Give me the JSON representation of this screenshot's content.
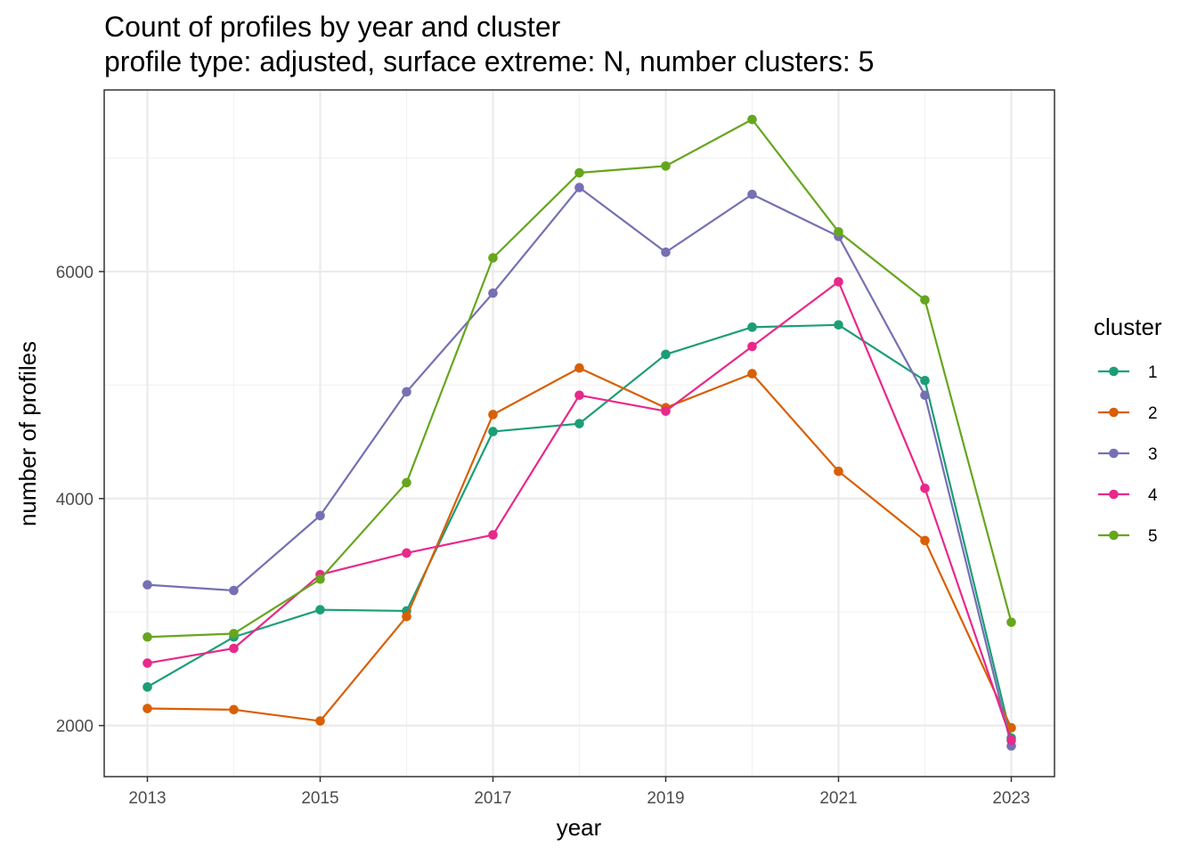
{
  "chart_data": {
    "type": "line",
    "title": "Count of profiles by year and cluster",
    "subtitle": "profile type: adjusted, surface extreme: N, number clusters: 5",
    "xlabel": "year",
    "ylabel": "number of profiles",
    "x": [
      2013,
      2014,
      2015,
      2016,
      2017,
      2018,
      2019,
      2020,
      2021,
      2022,
      2023
    ],
    "xlim": [
      2012.5,
      2023.5
    ],
    "ylim": [
      1550,
      7600
    ],
    "x_ticks": [
      2013,
      2015,
      2017,
      2019,
      2021,
      2023
    ],
    "y_ticks": [
      2000,
      4000,
      6000
    ],
    "grid": true,
    "legend": {
      "title": "cluster",
      "position": "right"
    },
    "series": [
      {
        "name": "1",
        "color": "#1B9E77",
        "values": [
          2340,
          2780,
          3020,
          3010,
          4590,
          4660,
          5270,
          5510,
          5530,
          5040,
          1890
        ]
      },
      {
        "name": "2",
        "color": "#D95F02",
        "values": [
          2150,
          2140,
          2040,
          2960,
          4740,
          5150,
          4800,
          5100,
          4240,
          3630,
          1980
        ]
      },
      {
        "name": "3",
        "color": "#7570B3",
        "values": [
          3240,
          3190,
          3850,
          4940,
          5810,
          6740,
          6170,
          6680,
          6310,
          4910,
          1820
        ]
      },
      {
        "name": "4",
        "color": "#E7298A",
        "values": [
          2550,
          2680,
          3330,
          3520,
          3680,
          4910,
          4770,
          5340,
          5910,
          4090,
          1870
        ]
      },
      {
        "name": "5",
        "color": "#66A61E",
        "values": [
          2780,
          2810,
          3290,
          4140,
          6120,
          6870,
          6930,
          7340,
          6350,
          5750,
          2910
        ]
      }
    ]
  }
}
